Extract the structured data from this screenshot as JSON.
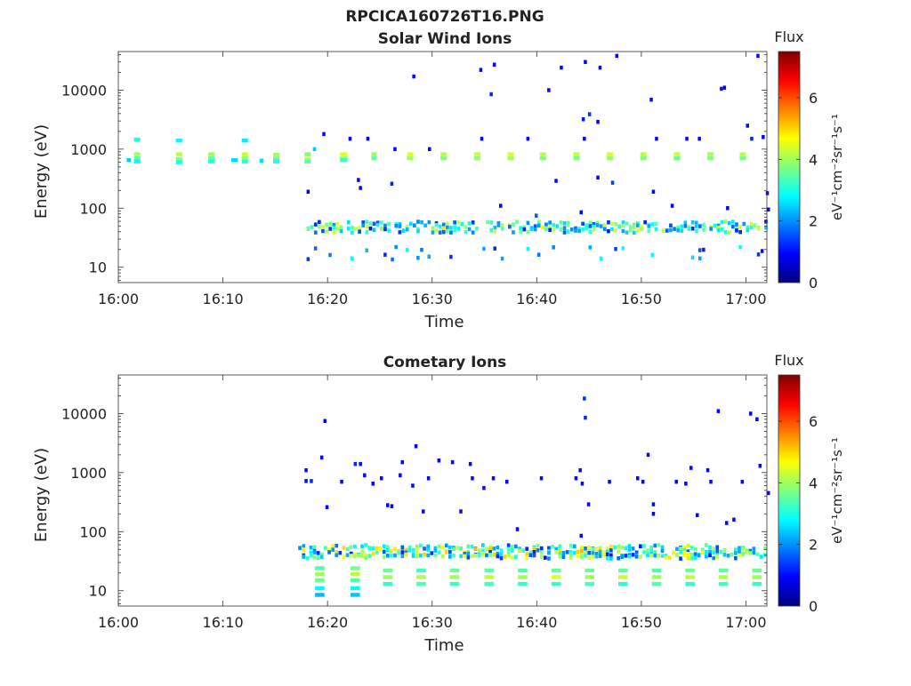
{
  "figure": {
    "title": "RPCICA160726T16.PNG"
  },
  "colormap": [
    "#00007f",
    "#0000ff",
    "#007fff",
    "#00ffff",
    "#7fff7f",
    "#ffff00",
    "#ff7f00",
    "#ff0000",
    "#7f0000"
  ],
  "chart_data": [
    {
      "type": "heatmap",
      "title": "Solar Wind Ions",
      "xlabel": "Time",
      "ylabel": "Energy (eV)",
      "x_ticks": [
        "16:00",
        "16:10",
        "16:20",
        "16:30",
        "16:40",
        "16:50",
        "17:00"
      ],
      "x_range_minutes": [
        0,
        62
      ],
      "y_scale": "log",
      "y_ticks": [
        "10",
        "100",
        "1000",
        "10000"
      ],
      "y_range": [
        5.5,
        45000
      ],
      "colorbar": {
        "label": "Flux",
        "unit": "eV⁻¹cm⁻²sr⁻¹s⁻¹",
        "ticks": [
          "0",
          "2",
          "4",
          "6"
        ],
        "range": [
          0,
          7.5
        ]
      },
      "sweeps": [
        {
          "t": 0.8,
          "w": 0.4,
          "levels": [
            [
              650,
              2.5
            ]
          ]
        },
        {
          "t": 1.5,
          "w": 0.6,
          "levels": [
            [
              1450,
              3.0
            ],
            [
              820,
              4.0
            ],
            [
              700,
              3.5
            ],
            [
              620,
              2.8
            ]
          ]
        },
        {
          "t": 5.5,
          "w": 0.6,
          "levels": [
            [
              1400,
              2.8
            ],
            [
              820,
              4.2
            ],
            [
              680,
              3.8
            ],
            [
              600,
              3.0
            ]
          ]
        },
        {
          "t": 8.6,
          "w": 0.6,
          "levels": [
            [
              820,
              4.0
            ],
            [
              700,
              3.6
            ],
            [
              620,
              3.0
            ]
          ]
        },
        {
          "t": 10.8,
          "w": 0.6,
          "levels": [
            [
              650,
              2.6
            ]
          ]
        },
        {
          "t": 11.8,
          "w": 0.6,
          "levels": [
            [
              1400,
              2.7
            ],
            [
              820,
              4.3
            ],
            [
              700,
              3.9
            ],
            [
              620,
              3.1
            ]
          ]
        },
        {
          "t": 13.5,
          "w": 0.4,
          "levels": [
            [
              640,
              2.6
            ]
          ]
        },
        {
          "t": 14.8,
          "w": 0.6,
          "levels": [
            [
              800,
              4.0
            ],
            [
              680,
              3.6
            ],
            [
              620,
              3.0
            ]
          ]
        },
        {
          "t": 17.8,
          "w": 0.6,
          "levels": [
            [
              820,
              3.8
            ],
            [
              680,
              4.2
            ],
            [
              620,
              3.4
            ]
          ]
        },
        {
          "t": 18.6,
          "w": 0.3,
          "levels": [
            [
              1000,
              2.4
            ]
          ]
        },
        {
          "t": 21.2,
          "w": 0.7,
          "levels": [
            [
              820,
              4.5
            ],
            [
              700,
              4.0
            ],
            [
              650,
              3.2
            ]
          ]
        },
        {
          "t": 24.2,
          "w": 0.5,
          "levels": [
            [
              820,
              4.0
            ],
            [
              700,
              3.5
            ]
          ]
        },
        {
          "t": 27.6,
          "w": 0.6,
          "levels": [
            [
              820,
              4.5
            ],
            [
              700,
              4.0
            ]
          ]
        },
        {
          "t": 30.8,
          "w": 0.6,
          "levels": [
            [
              820,
              4.2
            ],
            [
              700,
              3.8
            ]
          ]
        },
        {
          "t": 34.0,
          "w": 0.6,
          "levels": [
            [
              820,
              4.3
            ],
            [
              700,
              3.9
            ]
          ]
        },
        {
          "t": 37.2,
          "w": 0.6,
          "levels": [
            [
              820,
              4.4
            ],
            [
              700,
              4.0
            ]
          ]
        },
        {
          "t": 40.3,
          "w": 0.6,
          "levels": [
            [
              820,
              4.2
            ],
            [
              700,
              3.8
            ]
          ]
        },
        {
          "t": 43.5,
          "w": 0.6,
          "levels": [
            [
              820,
              4.3
            ],
            [
              700,
              3.7
            ]
          ]
        },
        {
          "t": 46.7,
          "w": 0.6,
          "levels": [
            [
              820,
              4.4
            ],
            [
              700,
              3.9
            ]
          ]
        },
        {
          "t": 49.9,
          "w": 0.6,
          "levels": [
            [
              820,
              4.2
            ],
            [
              700,
              3.8
            ]
          ]
        },
        {
          "t": 53.1,
          "w": 0.6,
          "levels": [
            [
              820,
              4.3
            ],
            [
              700,
              3.6
            ]
          ]
        },
        {
          "t": 56.3,
          "w": 0.6,
          "levels": [
            [
              820,
              4.1
            ],
            [
              700,
              3.8
            ]
          ]
        },
        {
          "t": 59.4,
          "w": 0.6,
          "levels": [
            [
              820,
              4.2
            ],
            [
              700,
              3.7
            ]
          ]
        }
      ],
      "band_start_minute": 18.0,
      "band_step_minute": 0.35,
      "band_energies": [
        55,
        48,
        42
      ],
      "band_low_energies": [
        20,
        15
      ],
      "points": [
        [
          28.1,
          17000,
          1.0
        ],
        [
          34.5,
          22000,
          1.0
        ],
        [
          35.8,
          27000,
          1.0
        ],
        [
          41.0,
          10000,
          1.0
        ],
        [
          42.2,
          24000,
          1.0
        ],
        [
          44.5,
          30000,
          1.0
        ],
        [
          45.9,
          24000,
          1.0
        ],
        [
          47.5,
          38000,
          1.0
        ],
        [
          57.8,
          11000,
          1.0
        ],
        [
          61.0,
          38000,
          1.0
        ],
        [
          35.5,
          8500,
          1.2
        ],
        [
          44.3,
          3200,
          1.1
        ],
        [
          44.9,
          3900,
          1.3
        ],
        [
          45.7,
          2900,
          0.9
        ],
        [
          50.8,
          6900,
          1.0
        ],
        [
          57.5,
          10500,
          1.1
        ],
        [
          60.0,
          2500,
          1.0
        ],
        [
          19.5,
          1800,
          1.0
        ],
        [
          22.0,
          1500,
          1.0
        ],
        [
          23.7,
          1500,
          1.0
        ],
        [
          26.3,
          1000,
          1.0
        ],
        [
          29.6,
          1000,
          1.0
        ],
        [
          34.6,
          1500,
          1.0
        ],
        [
          39.0,
          1500,
          1.0
        ],
        [
          44.4,
          1500,
          1.0
        ],
        [
          51.3,
          1500,
          1.0
        ],
        [
          54.2,
          1500,
          1.0
        ],
        [
          55.4,
          1500,
          1.0
        ],
        [
          60.4,
          1500,
          1.2
        ],
        [
          61.5,
          1600,
          1.0
        ],
        [
          18.0,
          190,
          1.0
        ],
        [
          22.8,
          300,
          1.0
        ],
        [
          23.0,
          220,
          1.0
        ],
        [
          26.0,
          260,
          1.2
        ],
        [
          36.4,
          110,
          1.0
        ],
        [
          41.7,
          290,
          1.0
        ],
        [
          44.1,
          85,
          1.0
        ],
        [
          45.7,
          330,
          1.0
        ],
        [
          51.0,
          190,
          1.0
        ],
        [
          52.8,
          110,
          1.0
        ],
        [
          58.1,
          100,
          1.0
        ],
        [
          61.9,
          180,
          1.0
        ],
        [
          62.0,
          95,
          1.0
        ],
        [
          39.8,
          75,
          1.6
        ],
        [
          47.1,
          270,
          1.4
        ]
      ]
    },
    {
      "type": "heatmap",
      "title": "Cometary Ions",
      "xlabel": "Time",
      "ylabel": "Energy (eV)",
      "x_ticks": [
        "16:00",
        "16:10",
        "16:20",
        "16:30",
        "16:40",
        "16:50",
        "17:00"
      ],
      "x_range_minutes": [
        0,
        62
      ],
      "y_scale": "log",
      "y_ticks": [
        "10",
        "100",
        "1000",
        "10000"
      ],
      "y_range": [
        5.5,
        45000
      ],
      "colorbar": {
        "label": "Flux",
        "unit": "eV⁻¹cm⁻²sr⁻¹s⁻¹",
        "ticks": [
          "0",
          "2",
          "4",
          "6"
        ],
        "range": [
          0,
          7.5
        ]
      },
      "sweeps": [
        {
          "t": 18.8,
          "w": 0.9,
          "levels": [
            [
              24,
              3.4
            ],
            [
              19,
              4.0
            ],
            [
              15,
              3.6
            ],
            [
              11,
              2.8
            ],
            [
              8.5,
              2.3
            ]
          ]
        },
        {
          "t": 22.2,
          "w": 0.9,
          "levels": [
            [
              24,
              3.7
            ],
            [
              19,
              4.2
            ],
            [
              15,
              3.4
            ],
            [
              11,
              2.8
            ],
            [
              8.5,
              2.4
            ]
          ]
        },
        {
          "t": 25.3,
          "w": 0.9,
          "levels": [
            [
              22,
              3.6
            ],
            [
              17,
              4.0
            ],
            [
              13,
              3.2
            ]
          ]
        },
        {
          "t": 28.5,
          "w": 0.9,
          "levels": [
            [
              22,
              3.3
            ],
            [
              17,
              4.1
            ],
            [
              13,
              3.4
            ]
          ]
        },
        {
          "t": 31.7,
          "w": 0.9,
          "levels": [
            [
              22,
              3.6
            ],
            [
              17,
              4.0
            ],
            [
              13,
              3.2
            ]
          ]
        },
        {
          "t": 35.0,
          "w": 0.9,
          "levels": [
            [
              22,
              3.5
            ],
            [
              17,
              4.2
            ],
            [
              13,
              3.3
            ]
          ]
        },
        {
          "t": 38.2,
          "w": 0.9,
          "levels": [
            [
              22,
              3.4
            ],
            [
              17,
              4.0
            ],
            [
              13,
              3.2
            ]
          ]
        },
        {
          "t": 41.4,
          "w": 0.9,
          "levels": [
            [
              22,
              3.5
            ],
            [
              17,
              4.4
            ],
            [
              13,
              3.2
            ]
          ]
        },
        {
          "t": 44.6,
          "w": 0.9,
          "levels": [
            [
              22,
              3.6
            ],
            [
              17,
              4.0
            ],
            [
              13,
              3.3
            ]
          ]
        },
        {
          "t": 47.8,
          "w": 0.9,
          "levels": [
            [
              22,
              3.5
            ],
            [
              17,
              4.3
            ],
            [
              13,
              3.1
            ]
          ]
        },
        {
          "t": 51.0,
          "w": 0.9,
          "levels": [
            [
              22,
              3.4
            ],
            [
              17,
              4.0
            ],
            [
              13,
              3.4
            ]
          ]
        },
        {
          "t": 54.2,
          "w": 0.9,
          "levels": [
            [
              22,
              3.6
            ],
            [
              17,
              4.2
            ],
            [
              13,
              3.2
            ]
          ]
        },
        {
          "t": 57.4,
          "w": 0.9,
          "levels": [
            [
              22,
              3.5
            ],
            [
              17,
              4.1
            ],
            [
              13,
              3.3
            ]
          ]
        },
        {
          "t": 60.6,
          "w": 0.9,
          "levels": [
            [
              22,
              3.6
            ],
            [
              17,
              4.0
            ],
            [
              13,
              3.2
            ]
          ]
        }
      ],
      "band_start_minute": 17.2,
      "band_step_minute": 0.35,
      "band_energies": [
        55,
        48,
        42,
        38
      ],
      "band_low_energies": [],
      "points": [
        [
          19.6,
          7500,
          1.0
        ],
        [
          28.3,
          2800,
          1.0
        ],
        [
          44.4,
          18000,
          1.3
        ],
        [
          44.5,
          8500,
          1.2
        ],
        [
          57.2,
          11000,
          1.0
        ],
        [
          60.3,
          10000,
          1.0
        ],
        [
          60.9,
          8000,
          1.0
        ],
        [
          50.5,
          2000,
          1.0
        ],
        [
          61.2,
          1300,
          1.0
        ],
        [
          17.8,
          1100,
          1.0
        ],
        [
          19.3,
          1800,
          1.0
        ],
        [
          22.5,
          1400,
          1.2
        ],
        [
          23.0,
          1400,
          1.0
        ],
        [
          27.0,
          1500,
          1.0
        ],
        [
          30.5,
          1600,
          1.0
        ],
        [
          31.8,
          1500,
          1.0
        ],
        [
          33.5,
          1400,
          1.0
        ],
        [
          44.0,
          1100,
          1.0
        ],
        [
          54.6,
          1200,
          1.0
        ],
        [
          56.2,
          1100,
          1.0
        ],
        [
          17.8,
          720,
          1.0
        ],
        [
          18.3,
          720,
          1.2
        ],
        [
          21.2,
          700,
          1.0
        ],
        [
          23.4,
          900,
          1.0
        ],
        [
          24.2,
          650,
          1.0
        ],
        [
          25.0,
          800,
          1.0
        ],
        [
          26.8,
          900,
          1.0
        ],
        [
          29.5,
          800,
          1.0
        ],
        [
          33.7,
          800,
          1.0
        ],
        [
          35.7,
          800,
          1.0
        ],
        [
          37.0,
          700,
          1.0
        ],
        [
          40.3,
          800,
          1.0
        ],
        [
          43.6,
          800,
          1.0
        ],
        [
          44.2,
          650,
          1.0
        ],
        [
          46.8,
          700,
          1.0
        ],
        [
          49.5,
          800,
          1.0
        ],
        [
          50.0,
          700,
          1.0
        ],
        [
          53.2,
          700,
          1.0
        ],
        [
          54.1,
          650,
          1.0
        ],
        [
          56.5,
          700,
          1.0
        ],
        [
          59.5,
          700,
          1.0
        ],
        [
          62.0,
          450,
          1.0
        ],
        [
          19.8,
          260,
          1.0
        ],
        [
          25.6,
          280,
          1.0
        ],
        [
          26.0,
          270,
          1.0
        ],
        [
          28.0,
          600,
          1.0
        ],
        [
          29.0,
          220,
          1.0
        ],
        [
          32.6,
          220,
          1.0
        ],
        [
          34.8,
          550,
          1.0
        ],
        [
          38.0,
          110,
          1.0
        ],
        [
          44.1,
          85,
          1.0
        ],
        [
          44.8,
          290,
          1.0
        ],
        [
          51.0,
          290,
          1.0
        ],
        [
          51.0,
          200,
          1.0
        ],
        [
          55.2,
          190,
          1.0
        ],
        [
          58.0,
          140,
          1.0
        ],
        [
          58.7,
          160,
          1.0
        ]
      ]
    }
  ]
}
